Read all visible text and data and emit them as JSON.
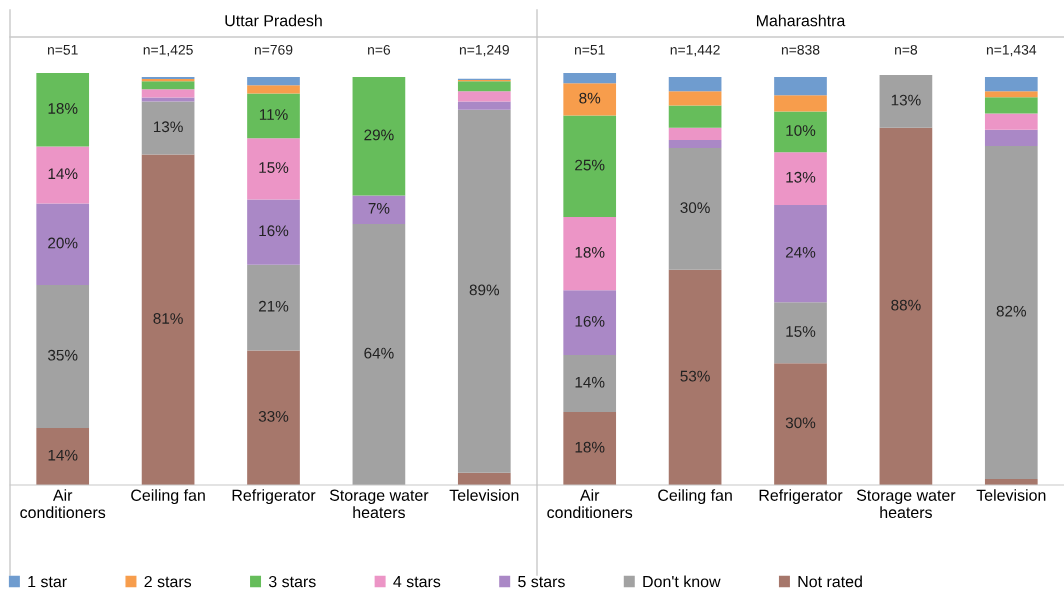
{
  "chart_data": [
    {
      "type": "bar",
      "title": "Uttar Pradesh",
      "stacked": true,
      "legend": "bottom",
      "tick_labels": "x",
      "categories": [
        "Air\nconditioners",
        "Ceiling fan",
        "Refrigerator",
        "Storage water\nheaters",
        "Television"
      ],
      "annotations": [
        "n=51",
        "n=1,425",
        "n=769",
        "n=6",
        "n=1,249"
      ],
      "series": [
        {
          "name": "Not rated",
          "color": "#a6776b",
          "values": [
            14,
            81,
            33,
            0,
            3
          ],
          "value_labels": [
            "14%",
            "81%",
            "33%",
            null,
            null
          ]
        },
        {
          "name": "Don't know",
          "color": "#a2a2a2",
          "values": [
            35,
            13,
            21,
            64,
            89
          ],
          "value_labels": [
            "35%",
            "13%",
            "21%",
            "64%",
            "89%"
          ]
        },
        {
          "name": "5 stars",
          "color": "#aa88c6",
          "values": [
            20,
            1,
            16,
            7,
            2
          ],
          "value_labels": [
            "20%",
            null,
            "16%",
            "7%",
            null
          ]
        },
        {
          "name": "4 stars",
          "color": "#ec95c6",
          "values": [
            14,
            2,
            15,
            0,
            2.5
          ],
          "value_labels": [
            "14%",
            null,
            "15%",
            null,
            null
          ]
        },
        {
          "name": "3 stars",
          "color": "#66bd5b",
          "values": [
            18,
            2,
            11,
            29,
            2.5
          ],
          "value_labels": [
            "18%",
            null,
            "11%",
            "29%",
            null
          ]
        },
        {
          "name": "2 stars",
          "color": "#f79d4c",
          "values": [
            0,
            0.5,
            2,
            0,
            0.3
          ],
          "value_labels": [
            null,
            null,
            null,
            null,
            null
          ]
        },
        {
          "name": "1 star",
          "color": "#6f9ccf",
          "values": [
            0,
            0.5,
            2,
            0,
            0.3
          ],
          "value_labels": [
            null,
            null,
            null,
            null,
            null
          ]
        }
      ]
    },
    {
      "type": "bar",
      "title": "Maharashtra",
      "stacked": true,
      "legend": "bottom",
      "tick_labels": "x",
      "categories": [
        "Air\nconditioners",
        "Ceiling fan",
        "Refrigerator",
        "Storage water\nheaters",
        "Television"
      ],
      "annotations": [
        "n=51",
        "n=1,442",
        "n=838",
        "n=8",
        "n=1,434"
      ],
      "series": [
        {
          "name": "Not rated",
          "color": "#a6776b",
          "values": [
            18,
            53,
            30,
            88,
            1.5
          ],
          "value_labels": [
            "18%",
            "53%",
            "30%",
            "88%",
            null
          ]
        },
        {
          "name": "Don't know",
          "color": "#a2a2a2",
          "values": [
            14,
            30,
            15,
            13,
            82
          ],
          "value_labels": [
            "14%",
            "30%",
            "15%",
            "13%",
            "82%"
          ]
        },
        {
          "name": "5 stars",
          "color": "#aa88c6",
          "values": [
            16,
            2,
            24,
            0,
            4
          ],
          "value_labels": [
            "16%",
            null,
            "24%",
            null,
            null
          ]
        },
        {
          "name": "4 stars",
          "color": "#ec95c6",
          "values": [
            18,
            3,
            13,
            0,
            4
          ],
          "value_labels": [
            "18%",
            null,
            "13%",
            null,
            null
          ]
        },
        {
          "name": "3 stars",
          "color": "#66bd5b",
          "values": [
            25,
            5.5,
            10,
            0,
            4
          ],
          "value_labels": [
            "25%",
            null,
            "10%",
            null,
            null
          ]
        },
        {
          "name": "2 stars",
          "color": "#f79d4c",
          "values": [
            8,
            3.5,
            4,
            0,
            1.5
          ],
          "value_labels": [
            "8%",
            null,
            null,
            null,
            null
          ]
        },
        {
          "name": "1 star",
          "color": "#6f9ccf",
          "values": [
            2.5,
            3.5,
            4.5,
            0,
            3.5
          ],
          "value_labels": [
            null,
            null,
            null,
            null,
            null
          ]
        }
      ]
    }
  ]
}
